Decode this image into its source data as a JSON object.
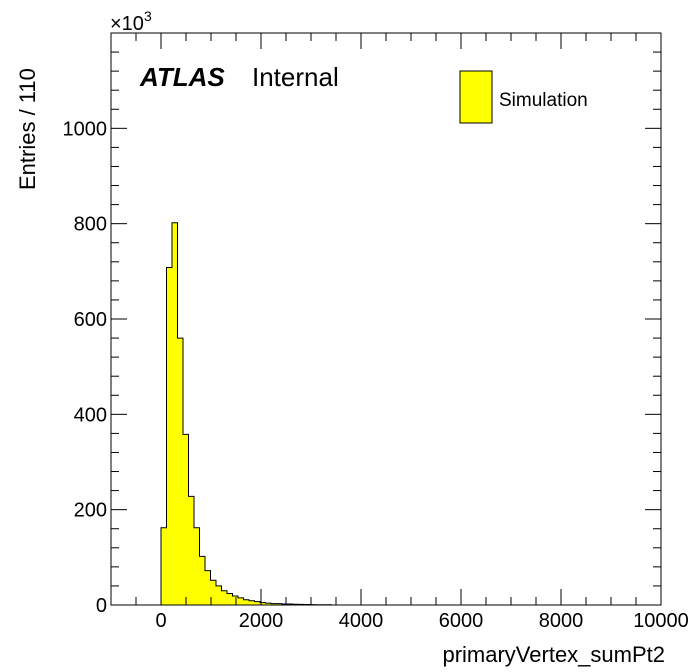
{
  "chart_data": {
    "type": "bar",
    "xlabel": "primaryVertex_sumPt2",
    "ylabel": "Entries / 110",
    "y_multiplier_label": "×10",
    "y_multiplier_exp": "3",
    "xlim": [
      -1000,
      10000
    ],
    "ylim": [
      0,
      1200
    ],
    "bin_width": 110,
    "x_ticks": [
      0,
      2000,
      4000,
      6000,
      8000,
      10000
    ],
    "x_tick_labels": [
      "0",
      "2000",
      "4000",
      "6000",
      "8000",
      "10000"
    ],
    "y_ticks": [
      0,
      200,
      400,
      600,
      800,
      1000
    ],
    "y_tick_labels": [
      "0",
      "200",
      "400",
      "600",
      "800",
      "1000"
    ],
    "atlas_label": "ATLAS",
    "atlas_status": "Internal",
    "legend_position": "top-right",
    "series": [
      {
        "name": "Simulation",
        "color": "#ffff00",
        "edge_color": "#000000",
        "bin_low_edges": [
          0,
          110,
          220,
          330,
          440,
          550,
          660,
          770,
          880,
          990,
          1100,
          1210,
          1320,
          1430,
          1540,
          1650,
          1760,
          1870,
          1980,
          2090,
          2200,
          2310,
          2420,
          2530,
          2640,
          2750,
          2860,
          2970,
          3080,
          3190,
          3300
        ],
        "values": [
          162,
          708,
          802,
          560,
          358,
          228,
          162,
          102,
          72,
          52,
          40,
          30,
          24,
          19,
          15,
          11,
          9,
          7,
          5,
          4,
          3,
          3,
          2,
          2,
          1.5,
          1.2,
          1.0,
          0.8,
          0.6,
          0.5,
          0.4
        ]
      }
    ]
  }
}
